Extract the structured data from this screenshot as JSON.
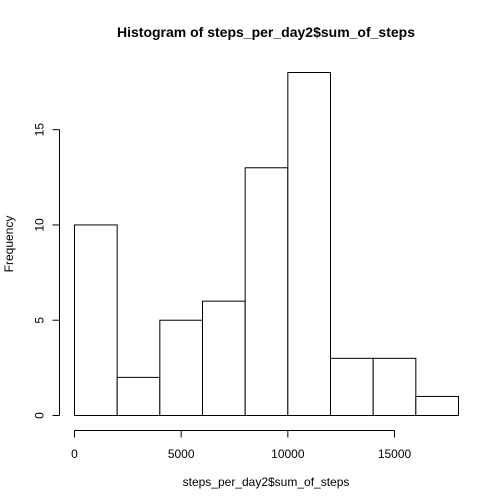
{
  "chart_data": {
    "type": "bar",
    "title": "Histogram of steps_per_day2$sum_of_steps",
    "xlabel": "steps_per_day2$sum_of_steps",
    "ylabel": "Frequency",
    "bins": [
      {
        "x0": 0,
        "x1": 2000,
        "count": 10
      },
      {
        "x0": 2000,
        "x1": 4000,
        "count": 2
      },
      {
        "x0": 4000,
        "x1": 6000,
        "count": 5
      },
      {
        "x0": 6000,
        "x1": 8000,
        "count": 6
      },
      {
        "x0": 8000,
        "x1": 10000,
        "count": 13
      },
      {
        "x0": 10000,
        "x1": 12000,
        "count": 18
      },
      {
        "x0": 12000,
        "x1": 14000,
        "count": 3
      },
      {
        "x0": 14000,
        "x1": 16000,
        "count": 3
      },
      {
        "x0": 16000,
        "x1": 18000,
        "count": 1
      }
    ],
    "xlim": [
      0,
      18000
    ],
    "ylim": [
      0,
      18
    ],
    "x_ticks": [
      "0",
      "5000",
      "10000",
      "15000"
    ],
    "y_ticks": [
      "0",
      "5",
      "10",
      "15"
    ],
    "grid": false
  }
}
